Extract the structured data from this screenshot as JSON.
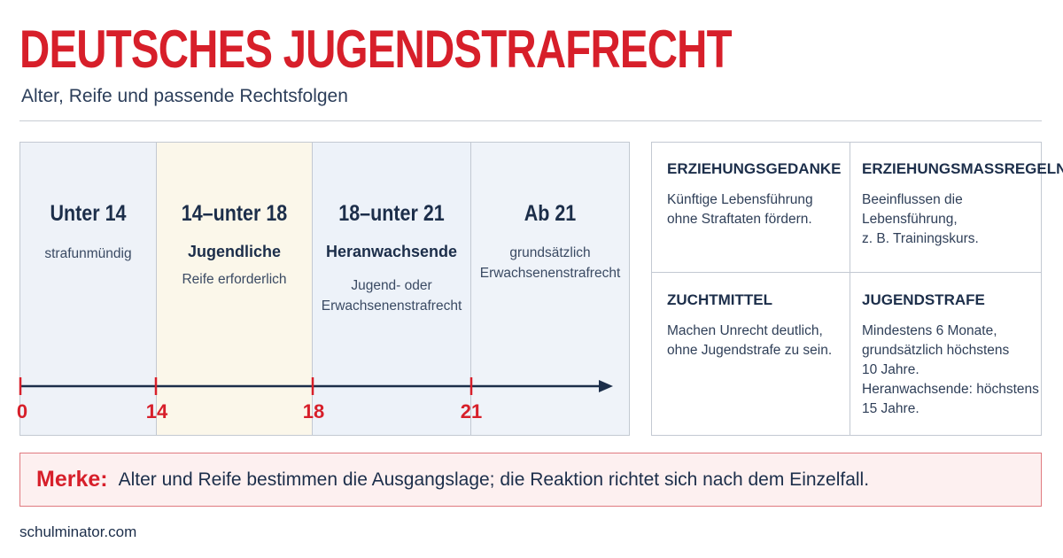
{
  "header": {
    "title": "DEUTSCHES JUGENDSTRAFRECHT",
    "subtitle": "Alter, Reife und passende Rechtsfolgen"
  },
  "timeline": {
    "zones": [
      {
        "heading": "Unter 14",
        "bold": "",
        "lines": [
          "strafunmündig"
        ]
      },
      {
        "heading": "14–unter 18",
        "bold": "Jugendliche",
        "lines": [
          "Reife erforderlich"
        ]
      },
      {
        "heading": "18–unter 21",
        "bold": "Heranwachsende",
        "lines": [
          "Jugend- oder",
          "Erwachsenenstrafrecht"
        ]
      },
      {
        "heading": "Ab 21",
        "bold": "",
        "lines": [
          "grundsätzlich",
          "Erwachsenenstrafrecht"
        ]
      }
    ],
    "ticks": [
      "0",
      "14",
      "18",
      "21"
    ]
  },
  "measures": [
    {
      "heading": "ERZIEHUNGSGEDANKE",
      "lines": [
        "Künftige Lebensführung",
        "ohne Straftaten fördern."
      ]
    },
    {
      "heading": "ERZIEHUNGSMASSREGELN",
      "lines": [
        "Beeinflussen die",
        "Lebensführung,",
        "z. B. Trainingskurs."
      ]
    },
    {
      "heading": "ZUCHTMITTEL",
      "lines": [
        "Machen Unrecht deutlich,",
        "ohne Jugendstrafe zu sein."
      ]
    },
    {
      "heading": "JUGENDSTRAFE",
      "lines": [
        "Mindestens 6 Monate,",
        "grundsätzlich höchstens",
        "10 Jahre.",
        "Heranwachsende: höchstens",
        "15 Jahre."
      ]
    }
  ],
  "note": {
    "label": "Merke:",
    "text": "Alter und Reife bestimmen die Ausgangslage; die Reaktion richtet sich nach dem Einzelfall."
  },
  "footer": {
    "source": "schulminator.com"
  },
  "colors": {
    "accent_red": "#d71f2a",
    "navy": "#1c2e4a",
    "note_bg": "#fdf0f0"
  }
}
